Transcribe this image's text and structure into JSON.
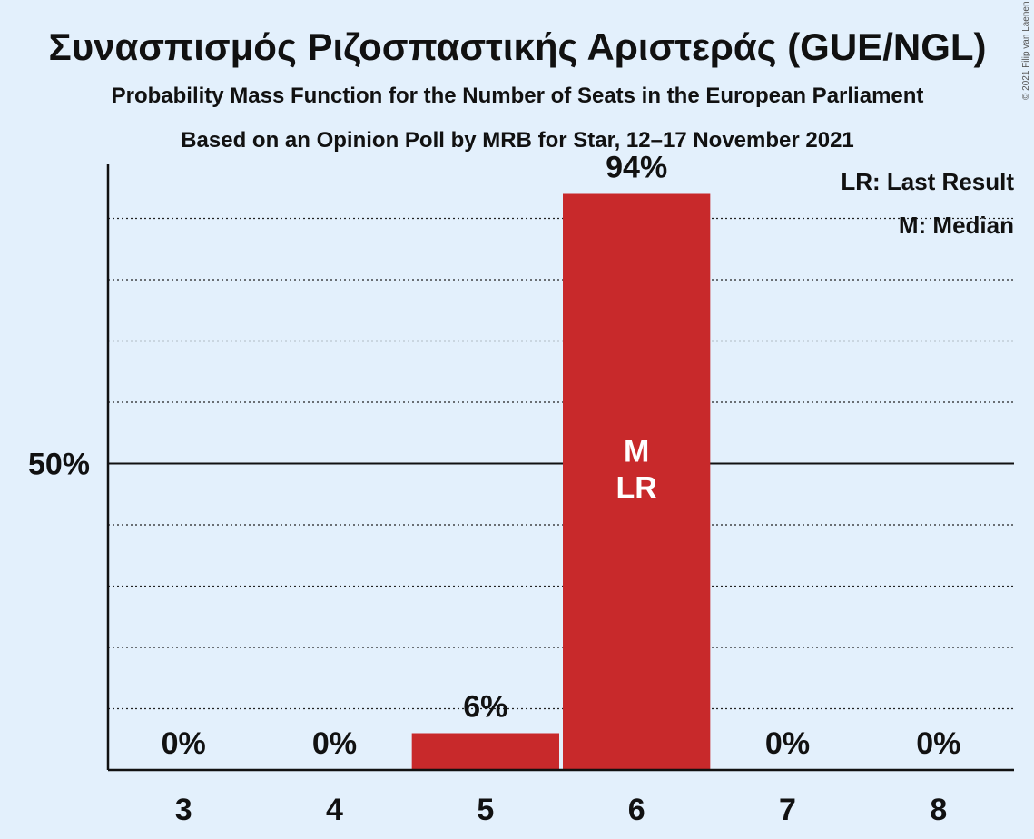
{
  "title": "Συνασπισμός Ριζοσπαστικής Αριστεράς (GUE/NGL)",
  "subtitle": "Probability Mass Function for the Number of Seats in the European Parliament",
  "source_line": "Based on an Opinion Poll by MRB for Star, 12–17 November 2021",
  "copyright": "© 2021 Filip van Laenen",
  "legend": {
    "last_result": "LR: Last Result",
    "median": "M: Median"
  },
  "colors": {
    "bar": "#c8292b",
    "background": "#e3f0fc",
    "text": "#111111"
  },
  "chart_data": {
    "type": "bar",
    "categories": [
      "3",
      "4",
      "5",
      "6",
      "7",
      "8"
    ],
    "values": [
      0,
      0,
      6,
      94,
      0,
      0
    ],
    "value_labels": [
      "0%",
      "0%",
      "6%",
      "94%",
      "0%",
      "0%"
    ],
    "ylim": [
      0,
      100
    ],
    "y_ticks": [
      {
        "value": 50,
        "label": "50%"
      }
    ],
    "grid_values": [
      10,
      20,
      30,
      40,
      60,
      70,
      80,
      90
    ],
    "median_category": "6",
    "last_result_category": "6",
    "median_marker": "M",
    "last_result_marker": "LR",
    "grid": true,
    "legend_position": "top-right"
  }
}
